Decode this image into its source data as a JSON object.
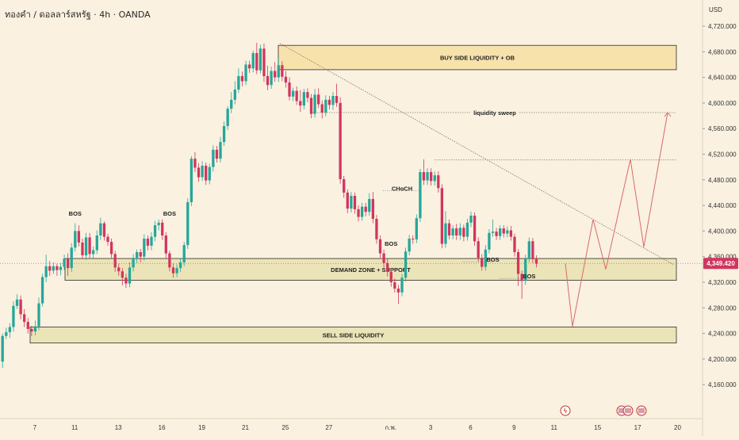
{
  "header": {
    "title": "ทองคำ / ดอลลาร์สหรัฐ · 4h · OANDA",
    "currency": "USD"
  },
  "price_tag": "4,349.420",
  "colors": {
    "background": "#faf1e0",
    "bull": "#26a69a",
    "bear": "#d1365e",
    "zone": "#e8e2b0",
    "liquidity_zone": "#f6dfa2",
    "arrow": "#d66a6a"
  },
  "icons": [
    "lightning-icon",
    "us-flag-icon",
    "us-flag-icon",
    "us-flag-icon"
  ],
  "chart_data": {
    "type": "candlestick",
    "y_ticks": [
      "4,720.000",
      "4,680.000",
      "4,640.000",
      "4,600.000",
      "4,560.000",
      "4,520.000",
      "4,480.000",
      "4,440.000",
      "4,400.000",
      "4,360.000",
      "4,320.000",
      "4,280.000",
      "4,240.000",
      "4,200.000",
      "4,160.000"
    ],
    "x_ticks": [
      "7",
      "11",
      "13",
      "16",
      "19",
      "21",
      "25",
      "27",
      "ก.พ.",
      "3",
      "6",
      "9",
      "11",
      "15",
      "17",
      "20"
    ],
    "ylim": [
      4145,
      4740
    ],
    "candles": [
      [
        4196,
        4236,
        4186,
        4240
      ],
      [
        4236,
        4242,
        4231,
        4249
      ],
      [
        4242,
        4250,
        4233,
        4256
      ],
      [
        4250,
        4283,
        4243,
        4290
      ],
      [
        4283,
        4293,
        4278,
        4301
      ],
      [
        4293,
        4270,
        4262,
        4299
      ],
      [
        4270,
        4258,
        4250,
        4278
      ],
      [
        4258,
        4247,
        4240,
        4264
      ],
      [
        4247,
        4243,
        4236,
        4252
      ],
      [
        4243,
        4251,
        4237,
        4260
      ],
      [
        4251,
        4287,
        4245,
        4296
      ],
      [
        4287,
        4328,
        4282,
        4333
      ],
      [
        4328,
        4345,
        4320,
        4363
      ],
      [
        4345,
        4338,
        4330,
        4353
      ],
      [
        4338,
        4345,
        4333,
        4351
      ],
      [
        4345,
        4339,
        4330,
        4349
      ],
      [
        4339,
        4344,
        4331,
        4350
      ],
      [
        4344,
        4357,
        4339,
        4363
      ],
      [
        4357,
        4342,
        4330,
        4365
      ],
      [
        4342,
        4374,
        4336,
        4381
      ],
      [
        4374,
        4400,
        4368,
        4412
      ],
      [
        4400,
        4382,
        4376,
        4409
      ],
      [
        4382,
        4362,
        4356,
        4388
      ],
      [
        4362,
        4390,
        4355,
        4397
      ],
      [
        4390,
        4364,
        4357,
        4397
      ],
      [
        4364,
        4370,
        4356,
        4376
      ],
      [
        4370,
        4393,
        4364,
        4401
      ],
      [
        4393,
        4412,
        4386,
        4421
      ],
      [
        4412,
        4391,
        4385,
        4415
      ],
      [
        4391,
        4383,
        4377,
        4396
      ],
      [
        4383,
        4364,
        4358,
        4388
      ],
      [
        4364,
        4343,
        4336,
        4369
      ],
      [
        4343,
        4337,
        4330,
        4349
      ],
      [
        4337,
        4327,
        4315,
        4342
      ],
      [
        4327,
        4318,
        4311,
        4333
      ],
      [
        4318,
        4343,
        4312,
        4351
      ],
      [
        4343,
        4358,
        4337,
        4364
      ],
      [
        4358,
        4367,
        4350,
        4371
      ],
      [
        4367,
        4360,
        4351,
        4372
      ],
      [
        4360,
        4388,
        4354,
        4395
      ],
      [
        4388,
        4377,
        4370,
        4393
      ],
      [
        4377,
        4391,
        4370,
        4398
      ],
      [
        4391,
        4409,
        4384,
        4416
      ],
      [
        4409,
        4413,
        4401,
        4418
      ],
      [
        4413,
        4393,
        4386,
        4418
      ],
      [
        4393,
        4365,
        4358,
        4398
      ],
      [
        4365,
        4343,
        4337,
        4369
      ],
      [
        4343,
        4334,
        4327,
        4349
      ],
      [
        4334,
        4342,
        4328,
        4348
      ],
      [
        4342,
        4351,
        4336,
        4357
      ],
      [
        4351,
        4378,
        4345,
        4383
      ],
      [
        4378,
        4445,
        4372,
        4451
      ],
      [
        4445,
        4513,
        4439,
        4517
      ],
      [
        4513,
        4499,
        4492,
        4523
      ],
      [
        4499,
        4484,
        4477,
        4506
      ],
      [
        4484,
        4502,
        4478,
        4509
      ],
      [
        4502,
        4479,
        4472,
        4507
      ],
      [
        4479,
        4500,
        4473,
        4505
      ],
      [
        4500,
        4527,
        4493,
        4534
      ],
      [
        4527,
        4513,
        4507,
        4533
      ],
      [
        4513,
        4539,
        4507,
        4547
      ],
      [
        4539,
        4564,
        4533,
        4571
      ],
      [
        4564,
        4591,
        4558,
        4595
      ],
      [
        4591,
        4605,
        4584,
        4617
      ],
      [
        4605,
        4621,
        4598,
        4634
      ],
      [
        4621,
        4642,
        4616,
        4654
      ],
      [
        4642,
        4634,
        4626,
        4649
      ],
      [
        4634,
        4660,
        4628,
        4666
      ],
      [
        4660,
        4654,
        4647,
        4666
      ],
      [
        4654,
        4678,
        4648,
        4682
      ],
      [
        4678,
        4651,
        4645,
        4694
      ],
      [
        4651,
        4685,
        4646,
        4691
      ],
      [
        4685,
        4642,
        4633,
        4693
      ],
      [
        4642,
        4628,
        4620,
        4658
      ],
      [
        4628,
        4650,
        4622,
        4657
      ],
      [
        4650,
        4640,
        4633,
        4664
      ],
      [
        4640,
        4659,
        4633,
        4670
      ],
      [
        4659,
        4641,
        4634,
        4665
      ],
      [
        4641,
        4632,
        4624,
        4650
      ],
      [
        4632,
        4610,
        4604,
        4640
      ],
      [
        4610,
        4619,
        4603,
        4624
      ],
      [
        4619,
        4603,
        4597,
        4626
      ],
      [
        4603,
        4596,
        4586,
        4620
      ],
      [
        4596,
        4617,
        4590,
        4622
      ],
      [
        4617,
        4608,
        4601,
        4623
      ],
      [
        4608,
        4583,
        4576,
        4614
      ],
      [
        4583,
        4613,
        4577,
        4622
      ],
      [
        4613,
        4598,
        4592,
        4623
      ],
      [
        4598,
        4585,
        4576,
        4604
      ],
      [
        4585,
        4605,
        4579,
        4612
      ],
      [
        4605,
        4597,
        4590,
        4611
      ],
      [
        4597,
        4611,
        4589,
        4617
      ],
      [
        4611,
        4600,
        4594,
        4630
      ],
      [
        4600,
        4481,
        4474,
        4609
      ],
      [
        4481,
        4460,
        4452,
        4486
      ],
      [
        4460,
        4435,
        4428,
        4465
      ],
      [
        4435,
        4455,
        4429,
        4461
      ],
      [
        4455,
        4434,
        4427,
        4460
      ],
      [
        4434,
        4422,
        4415,
        4440
      ],
      [
        4422,
        4438,
        4416,
        4444
      ],
      [
        4438,
        4430,
        4423,
        4444
      ],
      [
        4430,
        4450,
        4424,
        4459
      ],
      [
        4450,
        4419,
        4412,
        4461
      ],
      [
        4419,
        4387,
        4380,
        4425
      ],
      [
        4387,
        4365,
        4358,
        4393
      ],
      [
        4365,
        4350,
        4343,
        4371
      ],
      [
        4350,
        4336,
        4329,
        4356
      ],
      [
        4336,
        4320,
        4313,
        4342
      ],
      [
        4320,
        4310,
        4304,
        4326
      ],
      [
        4310,
        4304,
        4286,
        4316
      ],
      [
        4304,
        4327,
        4298,
        4333
      ],
      [
        4327,
        4368,
        4321,
        4374
      ],
      [
        4368,
        4388,
        4362,
        4394
      ],
      [
        4388,
        4387,
        4380,
        4393
      ],
      [
        4387,
        4420,
        4381,
        4426
      ],
      [
        4420,
        4492,
        4414,
        4497
      ],
      [
        4492,
        4479,
        4472,
        4512
      ],
      [
        4479,
        4492,
        4472,
        4498
      ],
      [
        4492,
        4478,
        4471,
        4498
      ],
      [
        4478,
        4487,
        4471,
        4493
      ],
      [
        4487,
        4467,
        4460,
        4493
      ],
      [
        4467,
        4380,
        4373,
        4473
      ],
      [
        4380,
        4412,
        4374,
        4431
      ],
      [
        4412,
        4393,
        4387,
        4418
      ],
      [
        4393,
        4404,
        4387,
        4409
      ],
      [
        4404,
        4393,
        4386,
        4411
      ],
      [
        4393,
        4405,
        4386,
        4412
      ],
      [
        4405,
        4391,
        4384,
        4410
      ],
      [
        4391,
        4413,
        4385,
        4419
      ],
      [
        4413,
        4424,
        4406,
        4430
      ],
      [
        4424,
        4384,
        4377,
        4429
      ],
      [
        4384,
        4358,
        4352,
        4390
      ],
      [
        4358,
        4344,
        4338,
        4364
      ],
      [
        4344,
        4371,
        4338,
        4378
      ],
      [
        4371,
        4397,
        4365,
        4403
      ],
      [
        4397,
        4399,
        4391,
        4418
      ],
      [
        4399,
        4392,
        4386,
        4405
      ],
      [
        4392,
        4404,
        4386,
        4409
      ],
      [
        4404,
        4396,
        4390,
        4409
      ],
      [
        4396,
        4401,
        4390,
        4407
      ],
      [
        4401,
        4391,
        4385,
        4408
      ],
      [
        4391,
        4367,
        4360,
        4396
      ],
      [
        4367,
        4333,
        4314,
        4372
      ],
      [
        4333,
        4322,
        4294,
        4338
      ],
      [
        4322,
        4357,
        4316,
        4363
      ],
      [
        4357,
        4384,
        4351,
        4390
      ],
      [
        4384,
        4356,
        4350,
        4389
      ],
      [
        4356,
        4349,
        4343,
        4362
      ]
    ],
    "zones": [
      {
        "label": "BUY SIDE LIQUIDITY + OB",
        "from": 4652,
        "to": 4690
      },
      {
        "label": "DEMAND ZONE + SUPPORT",
        "from": 4323,
        "to": 4357
      },
      {
        "label": "SELL SIDE LIQUIDITY",
        "from": 4225,
        "to": 4250
      }
    ],
    "levels": [
      {
        "label": "liquidity sweep",
        "price": 4585
      },
      {
        "label": "",
        "price": 4511
      }
    ],
    "annotations": [
      {
        "label": "BOS",
        "price": 4424,
        "candle": 20
      },
      {
        "label": "BOS",
        "price": 4424,
        "candle": 46
      },
      {
        "label": "BOS",
        "price": 4377,
        "candle": 107
      },
      {
        "label": "CHoCH",
        "price": 4463,
        "candle": 110
      },
      {
        "label": "BOS",
        "price": 4352,
        "candle": 135
      },
      {
        "label": "BOS",
        "price": 4326,
        "candle": 145
      }
    ],
    "trendline": [
      [
        4693,
        0
      ],
      [
        4347,
        1
      ]
    ],
    "projection": [
      4349,
      4251,
      4418,
      4340,
      4512,
      4375,
      4585
    ],
    "current_price": 4349.42
  }
}
